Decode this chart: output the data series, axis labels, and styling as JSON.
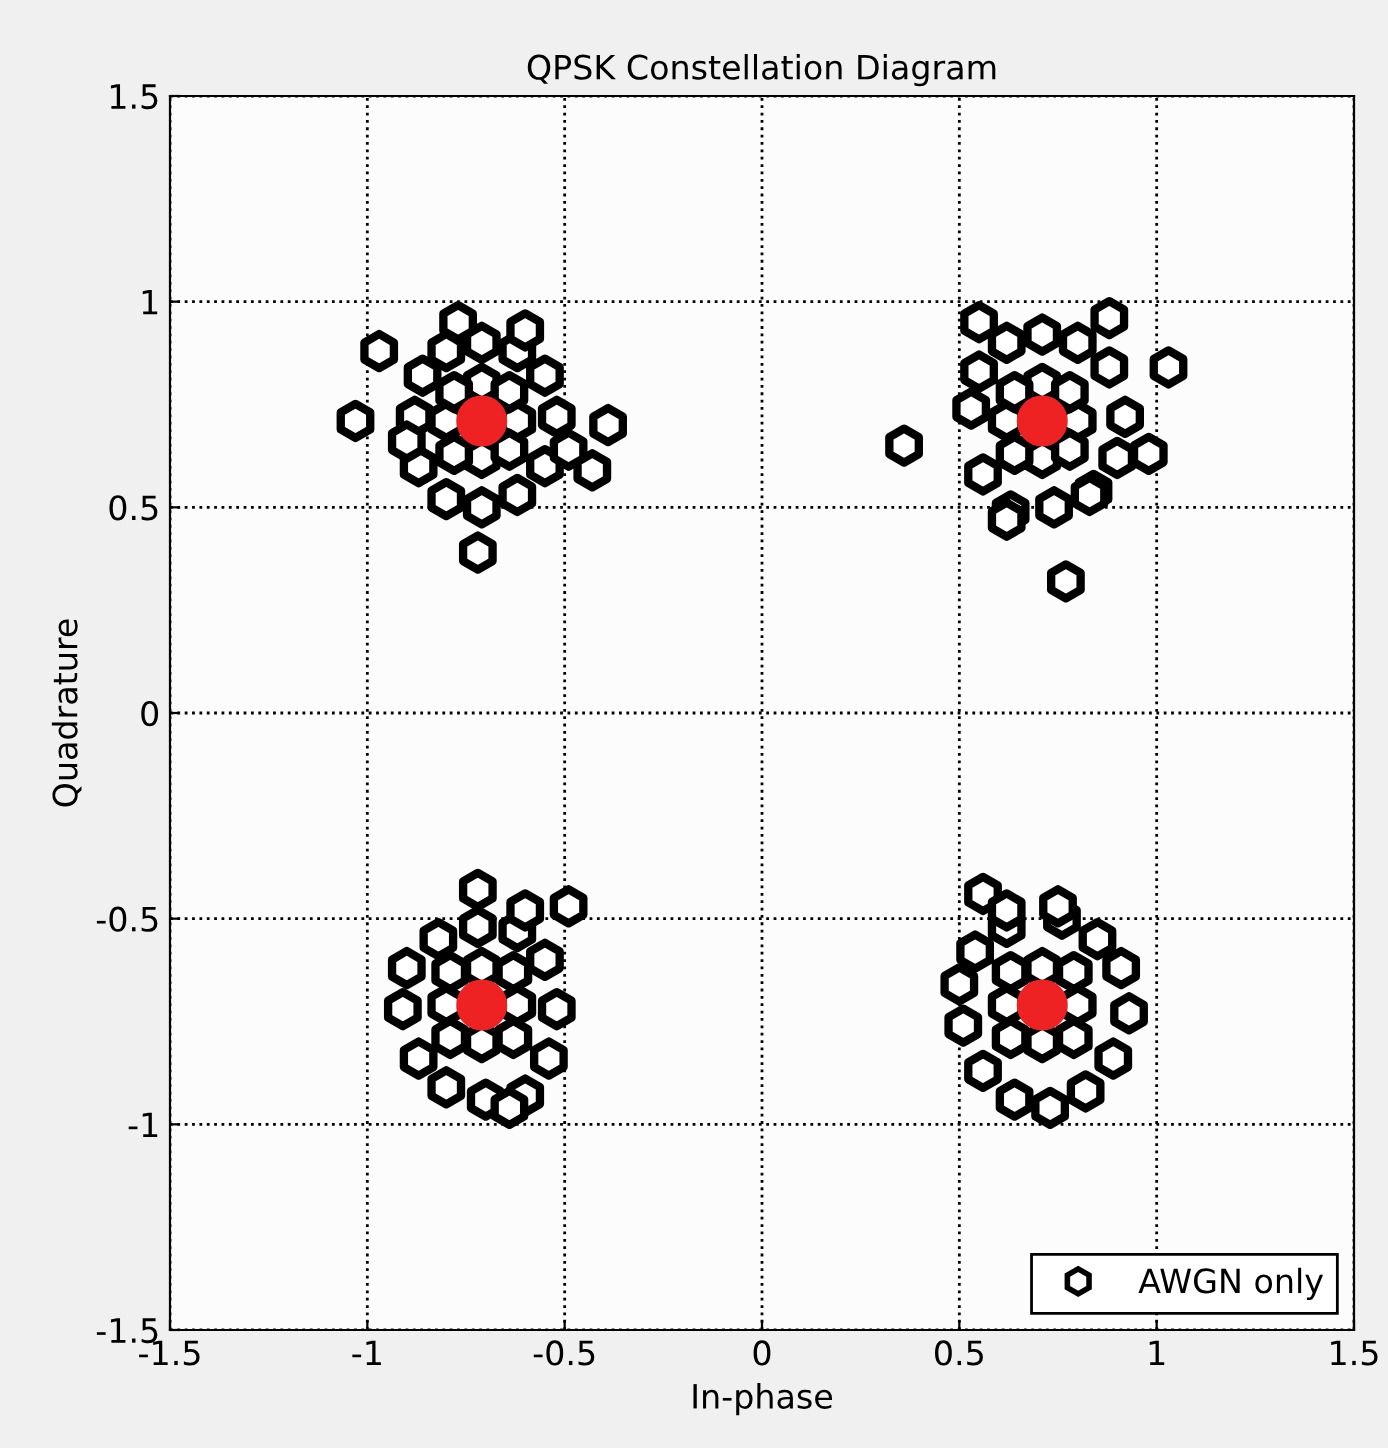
{
  "chart_data": {
    "type": "scatter",
    "title": "QPSK Constellation Diagram",
    "xlabel": "In-phase",
    "ylabel": "Quadrature",
    "xlim": [
      -1.5,
      1.5
    ],
    "ylim": [
      -1.5,
      1.5
    ],
    "xticks": [
      -1.5,
      -1,
      -0.5,
      0,
      0.5,
      1,
      1.5
    ],
    "yticks": [
      -1.5,
      -1,
      -0.5,
      0,
      0.5,
      1,
      1.5
    ],
    "grid": true,
    "legend": "bottom right",
    "series": [
      {
        "name": "AWGN only",
        "color": "#000000",
        "marker": "star",
        "x": [
          -0.8,
          -0.62,
          -0.71,
          -0.71,
          -0.78,
          -0.64,
          -0.78,
          -0.64,
          -0.88,
          -0.86,
          -0.8,
          -0.71,
          -0.62,
          -0.55,
          -0.52,
          -0.55,
          -0.62,
          -0.71,
          -0.8,
          -0.87,
          -0.9,
          -1.03,
          -0.97,
          -0.72,
          -0.39,
          -0.43,
          -0.49,
          -0.77,
          -0.6,
          0.62,
          0.8,
          0.71,
          0.71,
          0.64,
          0.78,
          0.64,
          0.78,
          0.53,
          0.55,
          0.62,
          0.71,
          0.8,
          0.88,
          0.92,
          0.9,
          0.84,
          0.74,
          0.63,
          0.56,
          0.36,
          1.03,
          0.77,
          0.88,
          0.55,
          0.98,
          0.83,
          0.62,
          -0.8,
          -0.62,
          -0.71,
          -0.71,
          -0.79,
          -0.63,
          -0.79,
          -0.63,
          -0.9,
          -0.91,
          -0.87,
          -0.8,
          -0.7,
          -0.6,
          -0.54,
          -0.52,
          -0.55,
          -0.62,
          -0.72,
          -0.82,
          -0.72,
          -0.49,
          -0.6,
          -0.64,
          0.62,
          0.8,
          0.71,
          0.71,
          0.63,
          0.79,
          0.63,
          0.79,
          0.5,
          0.51,
          0.56,
          0.64,
          0.73,
          0.82,
          0.89,
          0.93,
          0.91,
          0.85,
          0.76,
          0.62,
          0.54,
          0.56,
          0.62,
          0.75
        ],
        "values": [
          0.71,
          0.71,
          0.8,
          0.62,
          0.78,
          0.78,
          0.63,
          0.64,
          0.72,
          0.82,
          0.88,
          0.9,
          0.88,
          0.82,
          0.72,
          0.6,
          0.53,
          0.5,
          0.52,
          0.6,
          0.66,
          0.71,
          0.88,
          0.39,
          0.7,
          0.59,
          0.64,
          0.95,
          0.93,
          0.71,
          0.71,
          0.8,
          0.62,
          0.78,
          0.78,
          0.63,
          0.64,
          0.74,
          0.83,
          0.9,
          0.92,
          0.9,
          0.84,
          0.72,
          0.62,
          0.54,
          0.5,
          0.49,
          0.58,
          0.65,
          0.84,
          0.32,
          0.96,
          0.95,
          0.63,
          0.53,
          0.47,
          -0.71,
          -0.71,
          -0.62,
          -0.8,
          -0.63,
          -0.63,
          -0.79,
          -0.79,
          -0.62,
          -0.72,
          -0.84,
          -0.91,
          -0.94,
          -0.93,
          -0.84,
          -0.72,
          -0.6,
          -0.53,
          -0.52,
          -0.55,
          -0.43,
          -0.47,
          -0.48,
          -0.96,
          -0.71,
          -0.71,
          -0.62,
          -0.8,
          -0.63,
          -0.63,
          -0.79,
          -0.79,
          -0.66,
          -0.76,
          -0.87,
          -0.94,
          -0.96,
          -0.92,
          -0.84,
          -0.73,
          -0.62,
          -0.55,
          -0.5,
          -0.52,
          -0.58,
          -0.44,
          -0.48,
          -0.47
        ]
      },
      {
        "color": "#ee2222",
        "marker": "circle",
        "x": [
          -0.71,
          0.71,
          -0.71,
          0.71
        ],
        "values": [
          0.71,
          0.71,
          -0.71,
          -0.71
        ]
      }
    ]
  }
}
